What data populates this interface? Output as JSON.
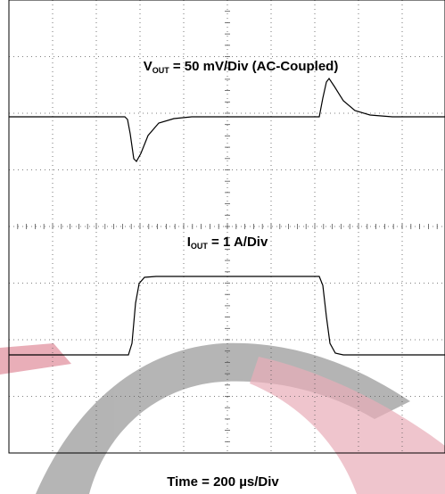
{
  "labels": {
    "vout": {
      "symbol": "V",
      "subscript": "OUT",
      "text": " = 50 mV/Div (AC-Coupled)"
    },
    "iout": {
      "symbol": "I",
      "subscript": "OUT",
      "text": " = 1 A/Div"
    },
    "time": "Time = 200 µs/Div"
  }
}
